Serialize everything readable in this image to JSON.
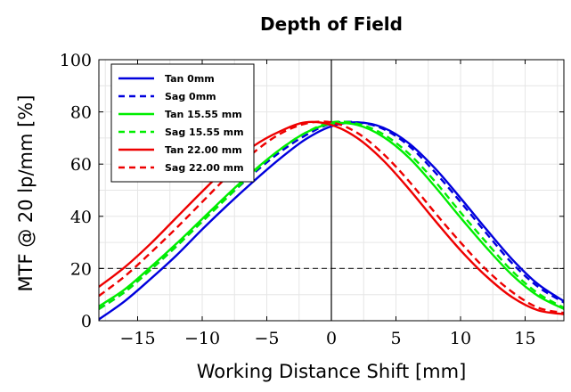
{
  "chart_data": {
    "type": "line",
    "title": "Depth of Field",
    "xlabel": "Working Distance Shift [mm]",
    "ylabel": "MTF @ 20 lp/mm [%]",
    "xlim": [
      -18,
      18
    ],
    "ylim": [
      0,
      100
    ],
    "xticks": [
      -15,
      -10,
      -5,
      0,
      5,
      10,
      15
    ],
    "xtick_labels": [
      "−15",
      "−10",
      "−5",
      "0",
      "5",
      "10",
      "15"
    ],
    "yticks": [
      0,
      20,
      40,
      60,
      80,
      100
    ],
    "ytick_labels": [
      "0",
      "20",
      "40",
      "60",
      "80",
      "100"
    ],
    "grid": true,
    "legend_position": "top-left",
    "reference_lines": [
      {
        "orientation": "horizontal",
        "value": 20,
        "style": "dashed"
      },
      {
        "orientation": "vertical",
        "value": 0,
        "style": "solid"
      }
    ],
    "x": [
      -18,
      -16,
      -14,
      -12,
      -10,
      -8,
      -6,
      -4,
      -2,
      0,
      2,
      4,
      6,
      8,
      10,
      12,
      14,
      16,
      18
    ],
    "series": [
      {
        "name": "Tan 0mm",
        "color": "#0000dd",
        "dash": "solid",
        "values": [
          0.5,
          7.5,
          16,
          25,
          35,
          44.5,
          53.5,
          62,
          69.5,
          74.5,
          76,
          74,
          68,
          58.5,
          47,
          35,
          23.5,
          14,
          7.5
        ]
      },
      {
        "name": "Sag 0mm",
        "color": "#0000dd",
        "dash": "dashed",
        "values": [
          4.5,
          11,
          19.5,
          28.5,
          38,
          47.5,
          56.5,
          64.5,
          71,
          75.5,
          76,
          73.5,
          67,
          57,
          45.5,
          33.5,
          22,
          13,
          7
        ]
      },
      {
        "name": "Tan 15.55 mm",
        "color": "#00ee00",
        "dash": "solid",
        "values": [
          5.5,
          12,
          20.5,
          29.5,
          39,
          48.5,
          57.5,
          65.5,
          72,
          75.5,
          75,
          70.5,
          62.5,
          51.5,
          39.5,
          28,
          17.5,
          9.5,
          4.5
        ]
      },
      {
        "name": "Sag 15.55 mm",
        "color": "#00ee00",
        "dash": "dashed",
        "values": [
          4.5,
          11,
          19.5,
          28.5,
          38,
          47.5,
          57,
          65.5,
          72,
          76,
          75.5,
          71.5,
          64,
          53.5,
          41.5,
          30,
          19,
          10.5,
          5
        ]
      },
      {
        "name": "Tan 22.00 mm",
        "color": "#ee0000",
        "dash": "solid",
        "values": [
          13,
          20.5,
          29.5,
          39.5,
          49.5,
          59,
          67,
          72.5,
          76,
          75,
          70,
          61.5,
          50.5,
          38.5,
          27,
          17,
          9,
          4,
          2.5
        ]
      },
      {
        "name": "Sag 22.00 mm",
        "color": "#ee0000",
        "dash": "dashed",
        "values": [
          9.5,
          17,
          26,
          35.5,
          45.5,
          55.5,
          64.5,
          71.5,
          75.5,
          76,
          72,
          64,
          53.5,
          41.5,
          30,
          19.5,
          11,
          5,
          3
        ]
      }
    ]
  }
}
